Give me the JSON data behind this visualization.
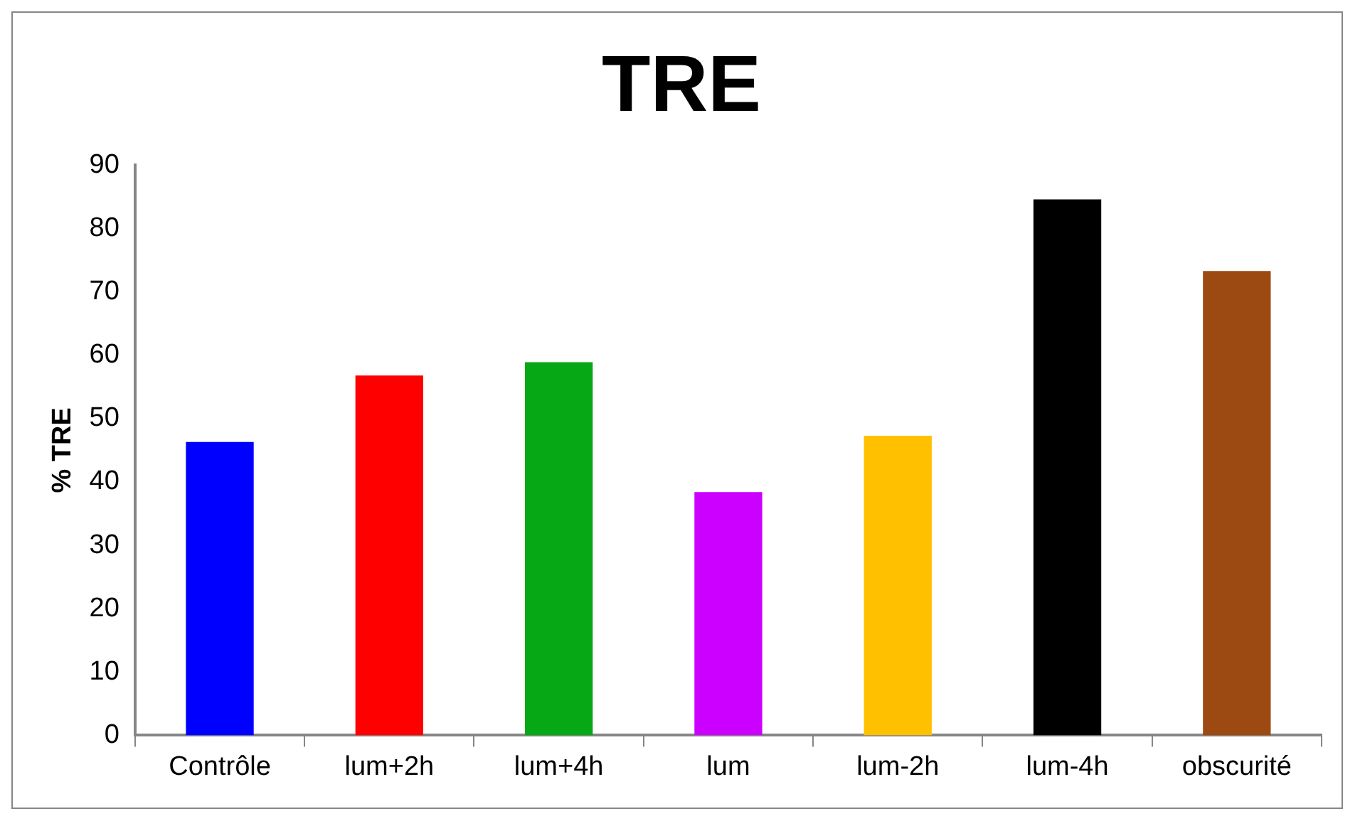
{
  "chart_data": {
    "type": "bar",
    "title": "TRE",
    "ylabel": "% TRE",
    "categories": [
      "Contrôle",
      "lum+2h",
      "lum+4h",
      "lum",
      "lum-2h",
      "lum-4h",
      "obscurité"
    ],
    "values": [
      46.3,
      56.8,
      58.9,
      38.4,
      47.3,
      84.6,
      73.3
    ],
    "colors": [
      "#0000ff",
      "#ff0000",
      "#07a816",
      "#cc00ff",
      "#ffc000",
      "#000000",
      "#9c4a12"
    ],
    "ylim": [
      0,
      90
    ],
    "yticks": [
      0,
      10,
      20,
      30,
      40,
      50,
      60,
      70,
      80,
      90
    ],
    "grid": false,
    "legend": false
  }
}
